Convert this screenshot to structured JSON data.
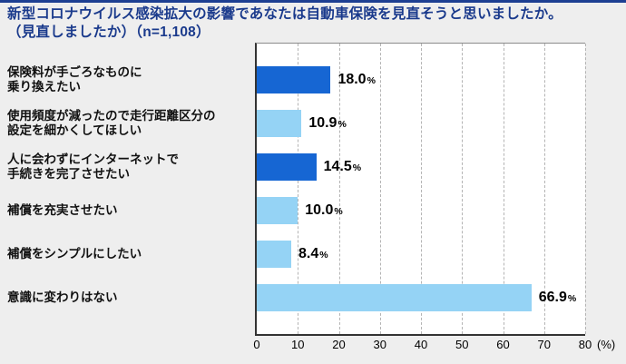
{
  "page": {
    "background_color": "#eeeeee",
    "top_border_color": "#1d3f92"
  },
  "title": {
    "line1": "新型コロナウイルス感染拡大の影響であなたは自動車保険を見直そうと思いましたか。",
    "line2": "（見直しましたか）（n=1,108）",
    "color": "#1a3a8c"
  },
  "chart_data": {
    "type": "bar",
    "orientation": "horizontal",
    "title": "新型コロナウイルス感染拡大の影響であなたは自動車保険を見直そうと思いましたか。（見直しましたか）（n=1,108）",
    "categories": [
      [
        "保険料が手ごろなものに",
        "乗り換えたい"
      ],
      [
        "使用頻度が減ったので走行距離区分の",
        "設定を細かくしてほしい"
      ],
      [
        "人に会わずにインターネットで",
        "手続きを完了させたい"
      ],
      [
        "補償を充実させたい"
      ],
      [
        "補償をシンプルにしたい"
      ],
      [
        "意識に変わりはない"
      ]
    ],
    "values": [
      18.0,
      10.9,
      14.5,
      10.0,
      8.4,
      66.9
    ],
    "value_labels": [
      "18.0",
      "10.9",
      "14.5",
      "10.0",
      "8.4",
      "66.9"
    ],
    "unit_suffix": "%",
    "bar_colors": [
      "#1666d3",
      "#95d3f5",
      "#1666d3",
      "#95d3f5",
      "#95d3f5",
      "#95d3f5"
    ],
    "dark_bar_color": "#1666d3",
    "light_bar_color": "#95d3f5",
    "xlim": [
      0,
      80
    ],
    "xticks": [
      0,
      10,
      20,
      30,
      40,
      50,
      60,
      70,
      80
    ],
    "axis_unit_label": "(%)",
    "grid": true,
    "legend": "none"
  }
}
